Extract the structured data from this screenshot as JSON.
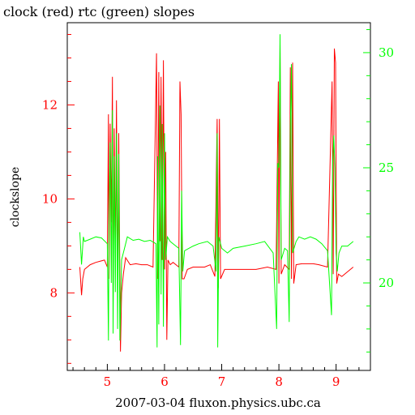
{
  "chart_data": {
    "type": "line",
    "title": "clock (red) rtc (green) slopes",
    "xlabel": "2007-03-04 fluxon.physics.ubc.ca",
    "ylabel": "clockslope",
    "y2label": "",
    "xlim": [
      4.3,
      9.6
    ],
    "ylim": [
      6.35,
      13.75
    ],
    "y2lim": [
      16.2,
      31.3
    ],
    "x_ticks": [
      "5",
      "6",
      "7",
      "8",
      "9"
    ],
    "y_ticks": [
      "8",
      "10",
      "12"
    ],
    "y2_ticks": [
      "20",
      "25",
      "30"
    ],
    "grid": false,
    "colors": {
      "left_axis": "#ff0000",
      "right_axis": "#00ff00",
      "frame": "#000000"
    },
    "series": [
      {
        "name": "clock",
        "axis": "left",
        "color": "#ff0000",
        "points": [
          [
            4.52,
            8.55
          ],
          [
            4.55,
            7.95
          ],
          [
            4.57,
            8.3
          ],
          [
            4.6,
            8.5
          ],
          [
            4.7,
            8.6
          ],
          [
            4.8,
            8.65
          ],
          [
            4.95,
            8.7
          ],
          [
            5.0,
            8.55
          ],
          [
            5.02,
            11.8
          ],
          [
            5.03,
            8.3
          ],
          [
            5.05,
            11.6
          ],
          [
            5.07,
            9.5
          ],
          [
            5.09,
            12.6
          ],
          [
            5.1,
            7.8
          ],
          [
            5.12,
            11.5
          ],
          [
            5.14,
            8.7
          ],
          [
            5.16,
            12.1
          ],
          [
            5.18,
            8.0
          ],
          [
            5.2,
            11.4
          ],
          [
            5.23,
            6.75
          ],
          [
            5.25,
            8.0
          ],
          [
            5.28,
            8.4
          ],
          [
            5.32,
            8.75
          ],
          [
            5.4,
            8.6
          ],
          [
            5.5,
            8.62
          ],
          [
            5.6,
            8.6
          ],
          [
            5.7,
            8.6
          ],
          [
            5.8,
            8.55
          ],
          [
            5.86,
            13.1
          ],
          [
            5.88,
            8.3
          ],
          [
            5.9,
            12.7
          ],
          [
            5.92,
            9.1
          ],
          [
            5.94,
            12.6
          ],
          [
            5.96,
            8.7
          ],
          [
            5.98,
            12.95
          ],
          [
            6.0,
            8.5
          ],
          [
            6.02,
            11.0
          ],
          [
            6.04,
            7.0
          ],
          [
            6.06,
            8.7
          ],
          [
            6.1,
            8.6
          ],
          [
            6.15,
            8.65
          ],
          [
            6.2,
            8.6
          ],
          [
            6.25,
            8.55
          ],
          [
            6.27,
            12.5
          ],
          [
            6.29,
            11.8
          ],
          [
            6.31,
            8.3
          ],
          [
            6.34,
            8.3
          ],
          [
            6.4,
            8.5
          ],
          [
            6.5,
            8.55
          ],
          [
            6.6,
            8.55
          ],
          [
            6.7,
            8.55
          ],
          [
            6.8,
            8.6
          ],
          [
            6.88,
            8.35
          ],
          [
            6.92,
            11.7
          ],
          [
            6.94,
            8.1
          ],
          [
            6.96,
            11.7
          ],
          [
            6.98,
            8.3
          ],
          [
            7.05,
            8.5
          ],
          [
            7.2,
            8.5
          ],
          [
            7.4,
            8.5
          ],
          [
            7.6,
            8.5
          ],
          [
            7.8,
            8.55
          ],
          [
            7.95,
            8.5
          ],
          [
            7.99,
            12.5
          ],
          [
            8.0,
            8.2
          ],
          [
            8.02,
            13.3
          ],
          [
            8.04,
            8.4
          ],
          [
            8.1,
            8.6
          ],
          [
            8.18,
            8.5
          ],
          [
            8.2,
            12.8
          ],
          [
            8.22,
            8.3
          ],
          [
            8.24,
            12.9
          ],
          [
            8.26,
            8.2
          ],
          [
            8.3,
            8.6
          ],
          [
            8.4,
            8.62
          ],
          [
            8.5,
            8.62
          ],
          [
            8.6,
            8.62
          ],
          [
            8.7,
            8.6
          ],
          [
            8.85,
            8.55
          ],
          [
            8.93,
            12.5
          ],
          [
            8.95,
            8.4
          ],
          [
            8.97,
            13.2
          ],
          [
            8.99,
            12.9
          ],
          [
            9.01,
            8.2
          ],
          [
            9.04,
            8.4
          ],
          [
            9.1,
            8.35
          ],
          [
            9.2,
            8.45
          ],
          [
            9.3,
            8.55
          ]
        ]
      },
      {
        "name": "rtc",
        "axis": "right",
        "color": "#00ff00",
        "points": [
          [
            4.52,
            22.2
          ],
          [
            4.55,
            20.8
          ],
          [
            4.58,
            22.0
          ],
          [
            4.6,
            21.8
          ],
          [
            4.7,
            21.9
          ],
          [
            4.8,
            22.0
          ],
          [
            4.9,
            21.95
          ],
          [
            5.0,
            21.7
          ],
          [
            5.02,
            17.5
          ],
          [
            5.03,
            22.5
          ],
          [
            5.05,
            26.1
          ],
          [
            5.07,
            20.0
          ],
          [
            5.09,
            27.5
          ],
          [
            5.1,
            17.8
          ],
          [
            5.12,
            25.5
          ],
          [
            5.14,
            19.6
          ],
          [
            5.16,
            26.5
          ],
          [
            5.18,
            18.0
          ],
          [
            5.2,
            25.6
          ],
          [
            5.22,
            17.5
          ],
          [
            5.25,
            21.0
          ],
          [
            5.3,
            21.5
          ],
          [
            5.35,
            22.0
          ],
          [
            5.45,
            21.85
          ],
          [
            5.55,
            21.9
          ],
          [
            5.65,
            21.8
          ],
          [
            5.75,
            21.85
          ],
          [
            5.85,
            21.7
          ],
          [
            5.87,
            17.2
          ],
          [
            5.88,
            25.5
          ],
          [
            5.9,
            18.2
          ],
          [
            5.92,
            27.7
          ],
          [
            5.94,
            19.5
          ],
          [
            5.96,
            26.9
          ],
          [
            5.98,
            18.1
          ],
          [
            6.0,
            26.5
          ],
          [
            6.02,
            21.0
          ],
          [
            6.05,
            22.0
          ],
          [
            6.1,
            21.8
          ],
          [
            6.2,
            21.6
          ],
          [
            6.25,
            21.5
          ],
          [
            6.28,
            17.3
          ],
          [
            6.3,
            24.0
          ],
          [
            6.32,
            20.5
          ],
          [
            6.35,
            21.4
          ],
          [
            6.5,
            21.6
          ],
          [
            6.6,
            21.7
          ],
          [
            6.75,
            21.8
          ],
          [
            6.85,
            21.6
          ],
          [
            6.9,
            20.5
          ],
          [
            6.92,
            26.5
          ],
          [
            6.93,
            17.2
          ],
          [
            6.95,
            22.0
          ],
          [
            7.0,
            21.5
          ],
          [
            7.1,
            21.3
          ],
          [
            7.2,
            21.5
          ],
          [
            7.4,
            21.6
          ],
          [
            7.6,
            21.7
          ],
          [
            7.75,
            21.8
          ],
          [
            7.9,
            21.3
          ],
          [
            7.96,
            18.0
          ],
          [
            7.98,
            25.2
          ],
          [
            8.0,
            25.0
          ],
          [
            8.02,
            30.8
          ],
          [
            8.04,
            21.0
          ],
          [
            8.1,
            21.5
          ],
          [
            8.15,
            21.4
          ],
          [
            8.18,
            18.3
          ],
          [
            8.2,
            26.8
          ],
          [
            8.22,
            29.5
          ],
          [
            8.24,
            21.3
          ],
          [
            8.3,
            21.8
          ],
          [
            8.35,
            22.0
          ],
          [
            8.45,
            21.9
          ],
          [
            8.55,
            22.0
          ],
          [
            8.65,
            21.9
          ],
          [
            8.75,
            21.7
          ],
          [
            8.85,
            21.4
          ],
          [
            8.92,
            18.6
          ],
          [
            8.94,
            25.2
          ],
          [
            8.96,
            26.4
          ],
          [
            8.98,
            25.0
          ],
          [
            9.0,
            21.3
          ],
          [
            9.02,
            20.5
          ],
          [
            9.05,
            21.3
          ],
          [
            9.1,
            21.6
          ],
          [
            9.2,
            21.6
          ],
          [
            9.3,
            21.8
          ]
        ]
      }
    ]
  }
}
